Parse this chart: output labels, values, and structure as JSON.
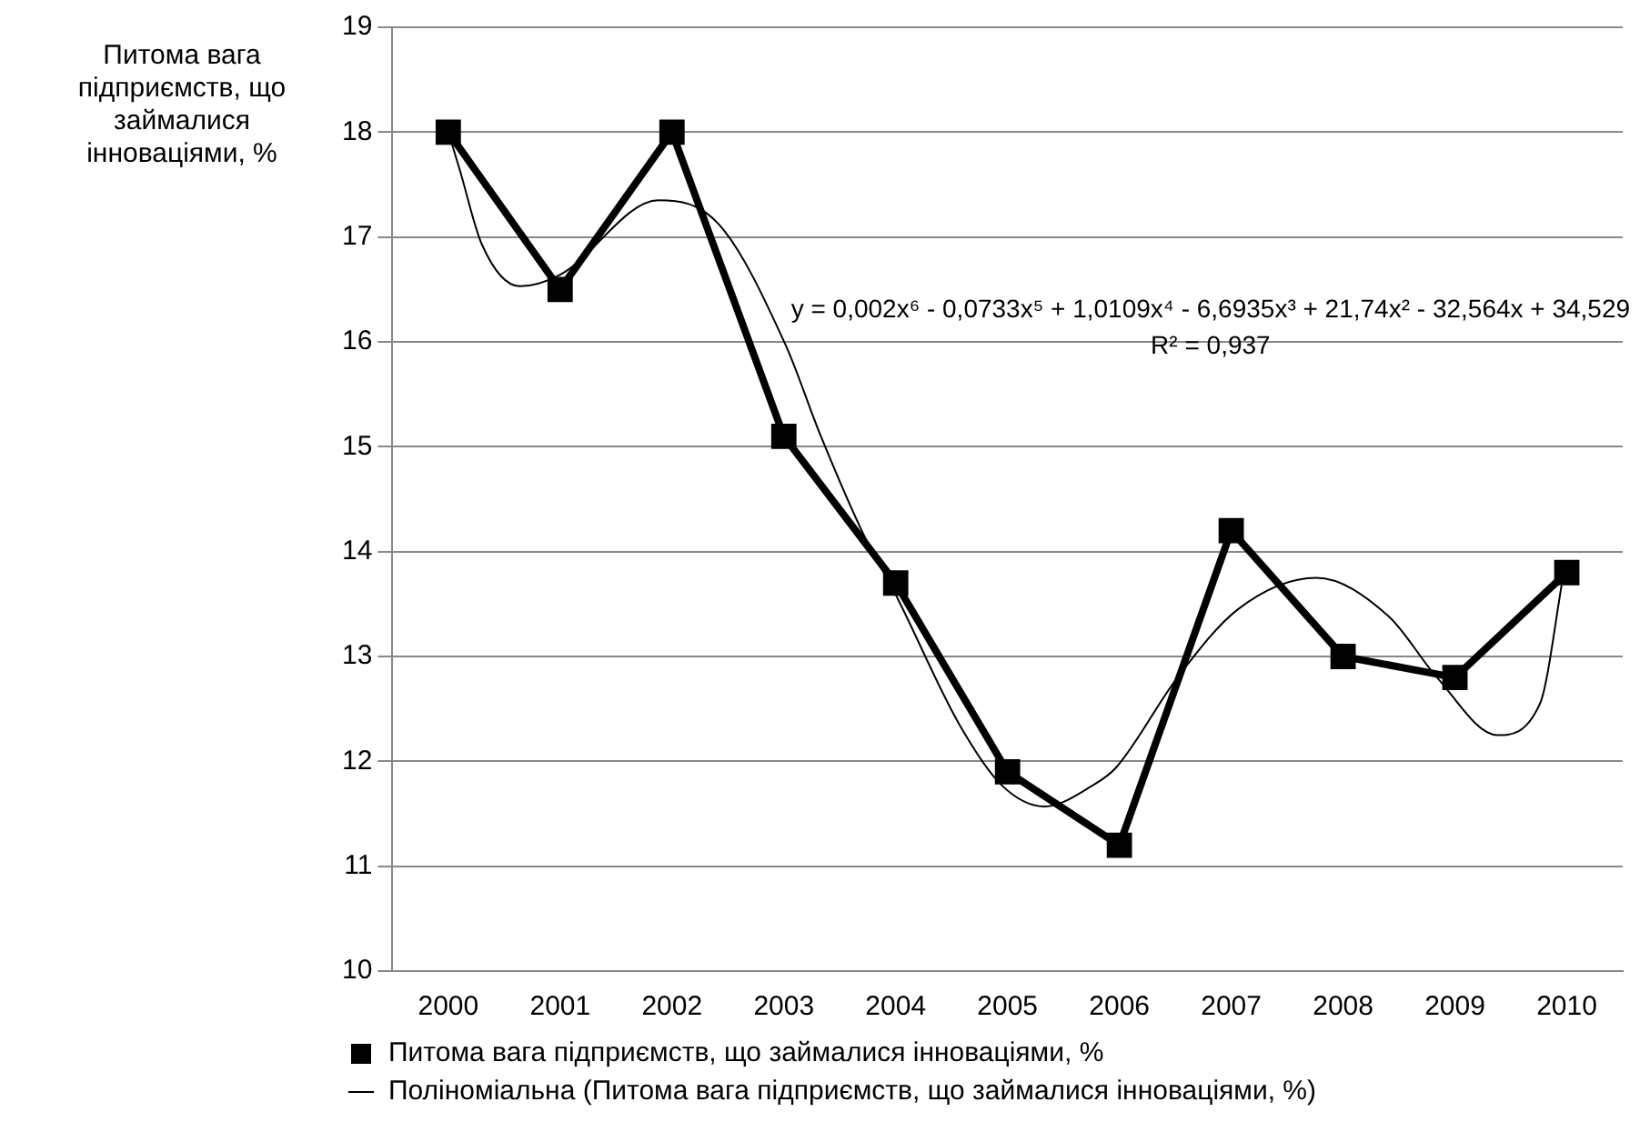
{
  "chart_data": {
    "type": "line",
    "ylabel": "Питома вага підприємств, що займалися інноваціями, %",
    "xlim": [
      1999.5,
      2010.5
    ],
    "xticks": [
      2000,
      2001,
      2002,
      2003,
      2004,
      2005,
      2006,
      2007,
      2008,
      2009,
      2010
    ],
    "ylim": [
      10,
      19
    ],
    "yticks": [
      10,
      11,
      12,
      13,
      14,
      15,
      16,
      17,
      18,
      19
    ],
    "grid": "y",
    "legend": "bottom",
    "annotations": [
      "y = 0,002x⁶ - 0,0733x⁵ + 1,0109x⁴ - 6,6935x³ + 21,74x² - 32,564x + 34,529",
      "R² = 0,937"
    ],
    "series": [
      {
        "name": "Питома вага підприємств, що займалися інноваціями, %",
        "type": "line",
        "color": "#000000",
        "marker": "square",
        "line_style": "solid",
        "x": [
          2000,
          2001,
          2002,
          2003,
          2004,
          2005,
          2006,
          2007,
          2008,
          2009,
          2010
        ],
        "values": [
          18,
          16.5,
          18,
          15.1,
          13.7,
          11.9,
          11.2,
          14.2,
          13,
          12.8,
          13.8
        ]
      },
      {
        "name": "Поліноміальна (Питома вага підприємств, що займалися інноваціями, %)",
        "type": "line",
        "color": "#000000",
        "marker": "none",
        "line_style": "solid",
        "x": [
          2000,
          2000.1,
          2000.3,
          2000.64,
          2001,
          2001.88,
          2002.42,
          2003.02,
          2003.32,
          2003.71,
          2004,
          2004.57,
          2004.95,
          2005.33,
          2005.76,
          2005.97,
          2006.52,
          2007.06,
          2007.76,
          2008.41,
          2008.84,
          2009.38,
          2009.76,
          2009.97
        ],
        "values": [
          18,
          17.65,
          16.93,
          16.53,
          16.64,
          17.35,
          17.12,
          15.96,
          15.13,
          14.17,
          13.59,
          12.35,
          11.77,
          11.57,
          11.77,
          11.94,
          12.8,
          13.45,
          13.75,
          13.38,
          12.8,
          12.25,
          12.55,
          13.78
        ]
      }
    ]
  }
}
